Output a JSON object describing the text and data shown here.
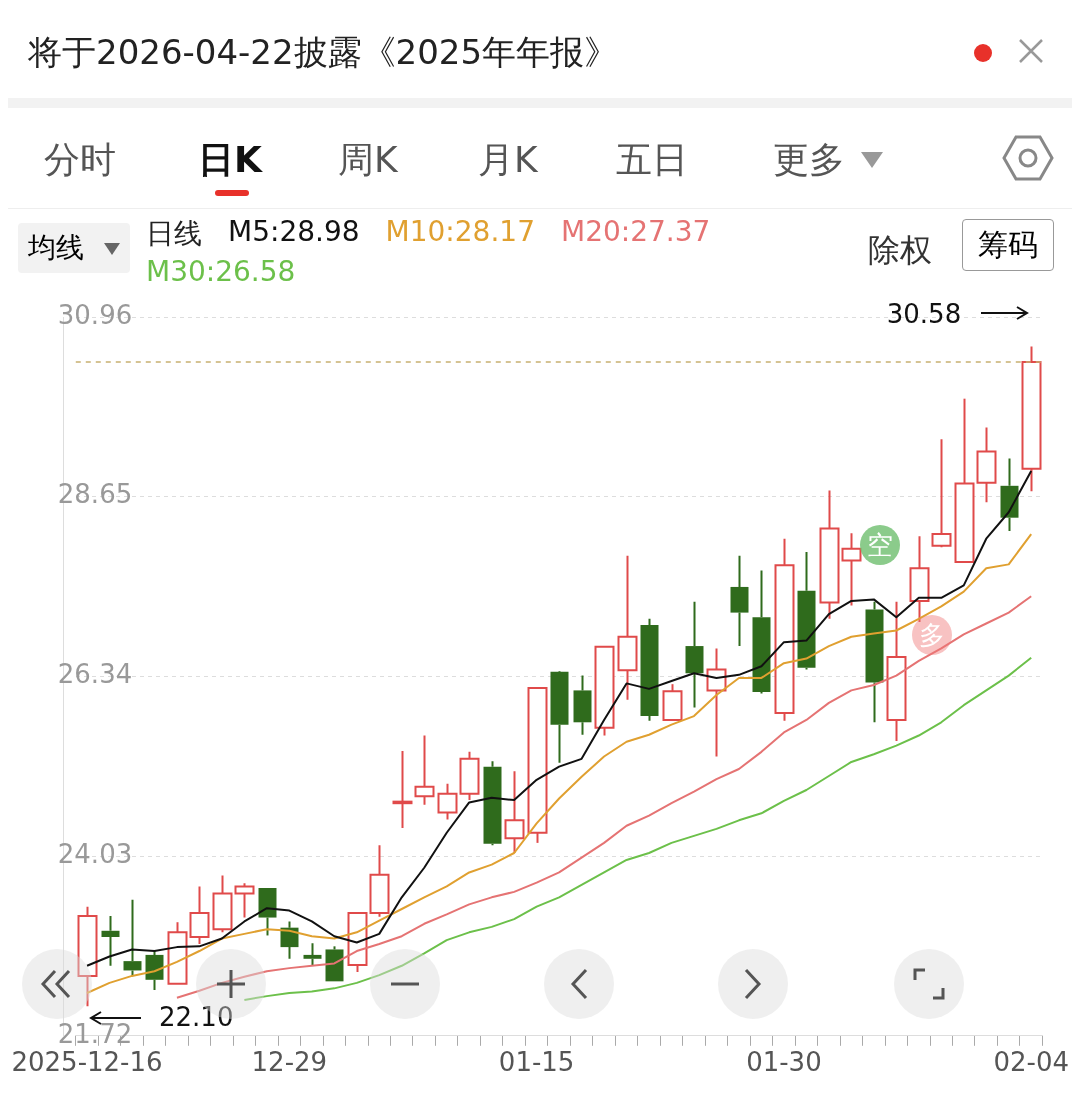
{
  "chart_data": {
    "type": "candlestick",
    "title": "将于2026-04-22披露《2025年年报》",
    "categories": [
      "2025-12-16",
      null,
      null,
      null,
      null,
      null,
      null,
      null,
      null,
      "12-29",
      null,
      null,
      null,
      null,
      null,
      null,
      null,
      null,
      null,
      null,
      "01-15",
      null,
      null,
      null,
      null,
      null,
      null,
      null,
      null,
      null,
      null,
      "01-30",
      null,
      null,
      null,
      null,
      null,
      null,
      null,
      null,
      null,
      null,
      "02-04"
    ],
    "ohlc": [
      [
        22.49,
        23.38,
        22.1,
        23.26
      ],
      [
        23.07,
        23.26,
        22.62,
        22.99
      ],
      [
        22.68,
        23.47,
        22.49,
        22.56
      ],
      [
        22.76,
        22.82,
        22.31,
        22.44
      ],
      [
        22.39,
        23.18,
        22.39,
        23.05
      ],
      [
        22.99,
        23.64,
        22.9,
        23.3
      ],
      [
        23.09,
        23.78,
        23.05,
        23.55
      ],
      [
        23.55,
        23.68,
        23.24,
        23.64
      ],
      [
        23.62,
        23.62,
        23.01,
        23.24
      ],
      [
        23.11,
        23.19,
        22.71,
        22.86
      ],
      [
        22.76,
        22.91,
        22.62,
        22.71
      ],
      [
        22.83,
        22.87,
        22.42,
        22.42
      ],
      [
        22.63,
        23.3,
        22.54,
        23.3
      ],
      [
        23.3,
        24.17,
        23.25,
        23.79
      ],
      [
        24.71,
        25.38,
        24.39,
        24.73
      ],
      [
        24.8,
        25.58,
        24.69,
        24.92
      ],
      [
        24.59,
        24.96,
        24.5,
        24.83
      ],
      [
        24.83,
        25.37,
        24.75,
        25.28
      ],
      [
        25.18,
        25.25,
        24.17,
        24.19
      ],
      [
        24.26,
        25.12,
        24.07,
        24.49
      ],
      [
        24.33,
        26.19,
        24.2,
        26.19
      ],
      [
        26.4,
        26.41,
        25.23,
        25.72
      ],
      [
        26.16,
        26.35,
        25.59,
        25.75
      ],
      [
        25.68,
        26.72,
        25.58,
        26.72
      ],
      [
        26.42,
        27.89,
        26.04,
        26.85
      ],
      [
        27.0,
        27.08,
        25.77,
        25.83
      ],
      [
        25.78,
        26.24,
        25.78,
        26.15
      ],
      [
        26.73,
        27.3,
        25.94,
        26.38
      ],
      [
        26.16,
        26.7,
        25.31,
        26.43
      ],
      [
        27.49,
        27.89,
        26.73,
        27.16
      ],
      [
        27.1,
        27.7,
        26.12,
        26.14
      ],
      [
        25.87,
        28.11,
        25.77,
        27.77
      ],
      [
        27.44,
        27.94,
        26.43,
        26.45
      ],
      [
        27.29,
        28.73,
        27.08,
        28.24
      ],
      [
        27.83,
        28.18,
        27.25,
        27.98
      ],
      [
        27.2,
        27.3,
        25.75,
        26.26
      ],
      [
        25.78,
        27.3,
        25.51,
        26.59
      ],
      [
        27.31,
        28.14,
        27.04,
        27.73
      ],
      [
        28.02,
        29.39,
        28.0,
        28.17
      ],
      [
        27.81,
        29.91,
        27.81,
        28.82
      ],
      [
        28.83,
        29.54,
        28.58,
        29.23
      ],
      [
        28.79,
        29.14,
        28.21,
        28.38
      ],
      [
        29.01,
        30.58,
        28.72,
        30.38
      ]
    ],
    "series": [
      {
        "name": "M5:28.98",
        "type": "line",
        "color": "#111111",
        "values": [
          22.62,
          22.74,
          22.83,
          22.81,
          22.86,
          22.87,
          22.97,
          23.19,
          23.36,
          23.33,
          23.19,
          23.0,
          22.92,
          23.03,
          23.5,
          23.88,
          24.33,
          24.72,
          24.78,
          24.75,
          25.01,
          25.18,
          25.28,
          25.78,
          26.25,
          26.18,
          26.28,
          26.38,
          26.32,
          26.36,
          26.47,
          26.78,
          26.8,
          27.14,
          27.31,
          27.33,
          27.1,
          27.35,
          27.35,
          27.51,
          28.11,
          28.45,
          28.98
        ]
      },
      {
        "name": "M10:28.17",
        "type": "line",
        "color": "#e0a030",
        "values": [
          22.27,
          22.4,
          22.49,
          22.55,
          22.67,
          22.81,
          22.97,
          23.03,
          23.09,
          23.07,
          23.0,
          22.97,
          23.05,
          23.2,
          23.35,
          23.5,
          23.64,
          23.82,
          23.92,
          24.07,
          24.45,
          24.77,
          25.05,
          25.31,
          25.5,
          25.59,
          25.72,
          25.83,
          26.1,
          26.32,
          26.32,
          26.51,
          26.57,
          26.73,
          26.85,
          26.89,
          26.93,
          27.08,
          27.24,
          27.43,
          27.73,
          27.78,
          28.17
        ]
      },
      {
        "name": "M20:27.37",
        "type": "line",
        "color": "#e57373",
        "values": [
          null,
          null,
          null,
          null,
          22.21,
          22.3,
          22.4,
          22.48,
          22.55,
          22.59,
          22.62,
          22.65,
          22.81,
          22.9,
          23.0,
          23.16,
          23.28,
          23.41,
          23.5,
          23.57,
          23.69,
          23.82,
          24.01,
          24.2,
          24.42,
          24.55,
          24.71,
          24.86,
          25.02,
          25.15,
          25.37,
          25.62,
          25.78,
          26.0,
          26.16,
          26.23,
          26.35,
          26.54,
          26.7,
          26.88,
          27.02,
          27.16,
          27.37
        ]
      },
      {
        "name": "M30:26.58",
        "type": "line",
        "color": "#6cc04a",
        "values": [
          null,
          null,
          null,
          null,
          null,
          null,
          null,
          22.18,
          22.23,
          22.27,
          22.29,
          22.33,
          22.4,
          22.5,
          22.62,
          22.78,
          22.95,
          23.05,
          23.12,
          23.22,
          23.38,
          23.5,
          23.66,
          23.82,
          23.98,
          24.07,
          24.2,
          24.29,
          24.38,
          24.49,
          24.58,
          24.74,
          24.88,
          25.06,
          25.24,
          25.34,
          25.45,
          25.58,
          25.75,
          25.97,
          26.16,
          26.35,
          26.58
        ]
      }
    ],
    "ylim": [
      21.72,
      30.96
    ],
    "yticks": [
      21.72,
      24.03,
      26.34,
      28.65,
      30.96
    ],
    "grid": "y",
    "legend": "top left",
    "ref_lines": [
      {
        "axis": "y",
        "value": 30.38,
        "color": "#c8b070",
        "line_style": "dashed"
      }
    ],
    "annotations": [
      "分时",
      "日K",
      "周K",
      "月K",
      "五日",
      "更多",
      "均线",
      "日线",
      "除权",
      "筹码",
      "空",
      "多",
      "30.58",
      "22.10"
    ]
  }
}
